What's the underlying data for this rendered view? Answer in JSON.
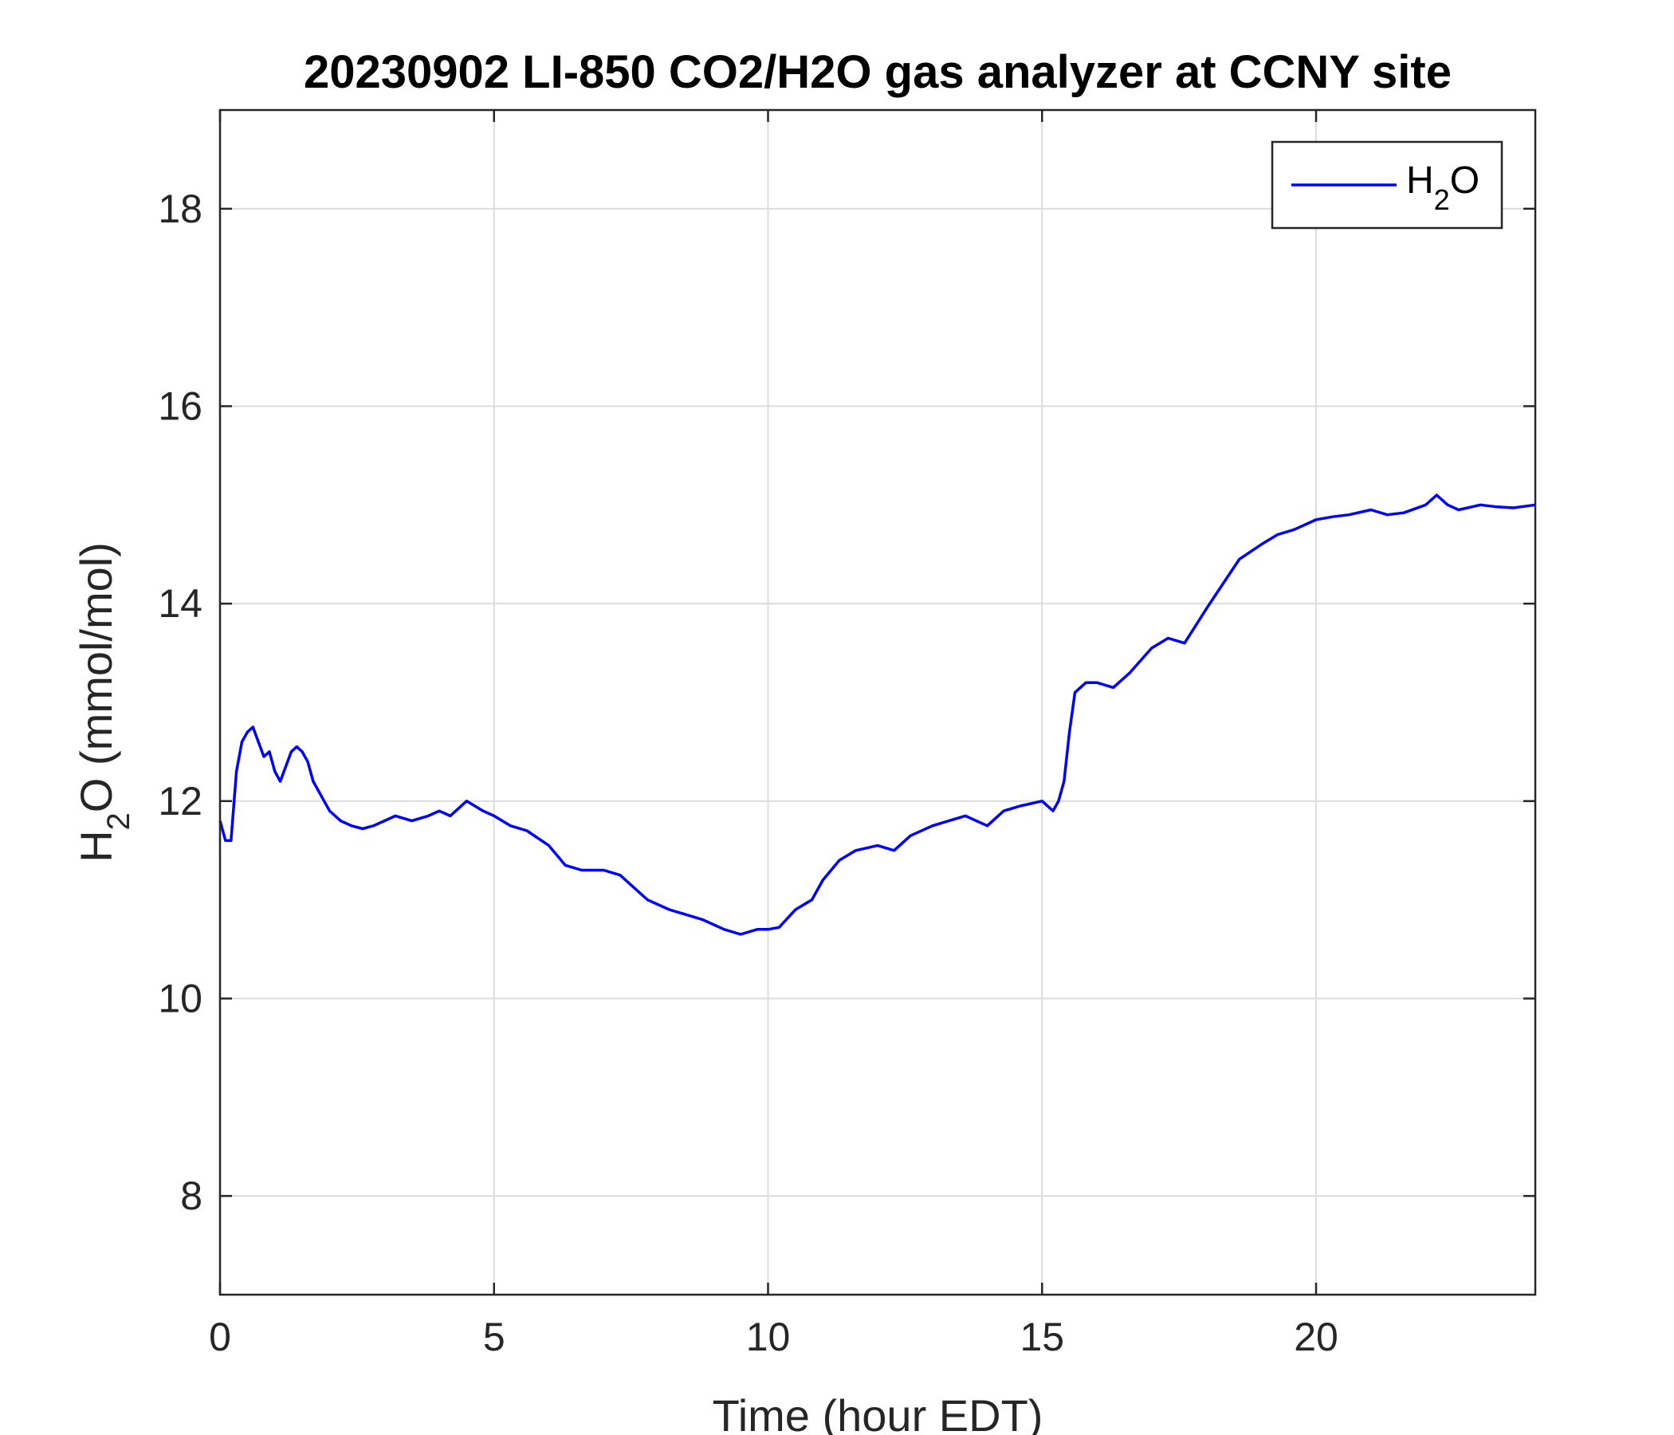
{
  "chart_data": {
    "type": "line",
    "title": "20230902 LI-850 CO2/H2O gas analyzer at CCNY site",
    "xlabel": "Time (hour EDT)",
    "ylabel": {
      "main": "H",
      "sub": "2",
      "rest": "O (mmol/mol)"
    },
    "xlim": [
      0,
      24
    ],
    "ylim": [
      7,
      19
    ],
    "xticks": [
      0,
      5,
      10,
      15,
      20
    ],
    "yticks": [
      8,
      10,
      12,
      14,
      16,
      18
    ],
    "grid": true,
    "legend_position": "top-right",
    "series": [
      {
        "name": {
          "main": "H",
          "sub": "2",
          "rest": "O"
        },
        "color": "#0000ff",
        "x": [
          0,
          0.1,
          0.2,
          0.3,
          0.4,
          0.5,
          0.6,
          0.7,
          0.8,
          0.9,
          1.0,
          1.1,
          1.2,
          1.3,
          1.4,
          1.5,
          1.6,
          1.7,
          1.8,
          1.9,
          2.0,
          2.2,
          2.4,
          2.6,
          2.8,
          3.0,
          3.2,
          3.5,
          3.8,
          4.0,
          4.2,
          4.5,
          4.8,
          5.0,
          5.3,
          5.6,
          6.0,
          6.3,
          6.6,
          7.0,
          7.3,
          7.6,
          7.8,
          8.0,
          8.2,
          8.5,
          8.8,
          9.0,
          9.2,
          9.5,
          9.8,
          10.0,
          10.2,
          10.5,
          10.8,
          11.0,
          11.3,
          11.6,
          12.0,
          12.3,
          12.6,
          13.0,
          13.3,
          13.6,
          14.0,
          14.3,
          14.6,
          15.0,
          15.2,
          15.3,
          15.4,
          15.5,
          15.6,
          15.8,
          16.0,
          16.3,
          16.6,
          17.0,
          17.3,
          17.6,
          18.0,
          18.3,
          18.6,
          19.0,
          19.3,
          19.6,
          20.0,
          20.3,
          20.6,
          21.0,
          21.3,
          21.6,
          22.0,
          22.2,
          22.4,
          22.6,
          23.0,
          23.3,
          23.6,
          24.0
        ],
        "y": [
          11.8,
          11.6,
          11.6,
          12.3,
          12.6,
          12.7,
          12.75,
          12.6,
          12.45,
          12.5,
          12.3,
          12.2,
          12.35,
          12.5,
          12.55,
          12.5,
          12.4,
          12.2,
          12.1,
          12.0,
          11.9,
          11.8,
          11.75,
          11.72,
          11.75,
          11.8,
          11.85,
          11.8,
          11.85,
          11.9,
          11.85,
          12.0,
          11.9,
          11.85,
          11.75,
          11.7,
          11.55,
          11.35,
          11.3,
          11.3,
          11.25,
          11.1,
          11.0,
          10.95,
          10.9,
          10.85,
          10.8,
          10.75,
          10.7,
          10.65,
          10.7,
          10.7,
          10.72,
          10.9,
          11.0,
          11.2,
          11.4,
          11.5,
          11.55,
          11.5,
          11.65,
          11.75,
          11.8,
          11.85,
          11.75,
          11.9,
          11.95,
          12.0,
          11.9,
          12.0,
          12.2,
          12.7,
          13.1,
          13.2,
          13.2,
          13.15,
          13.3,
          13.55,
          13.65,
          13.6,
          13.95,
          14.2,
          14.45,
          14.6,
          14.7,
          14.75,
          14.85,
          14.88,
          14.9,
          14.95,
          14.9,
          14.92,
          15.0,
          15.1,
          15.0,
          14.95,
          15.0,
          14.98,
          14.97,
          15.0
        ]
      }
    ]
  }
}
